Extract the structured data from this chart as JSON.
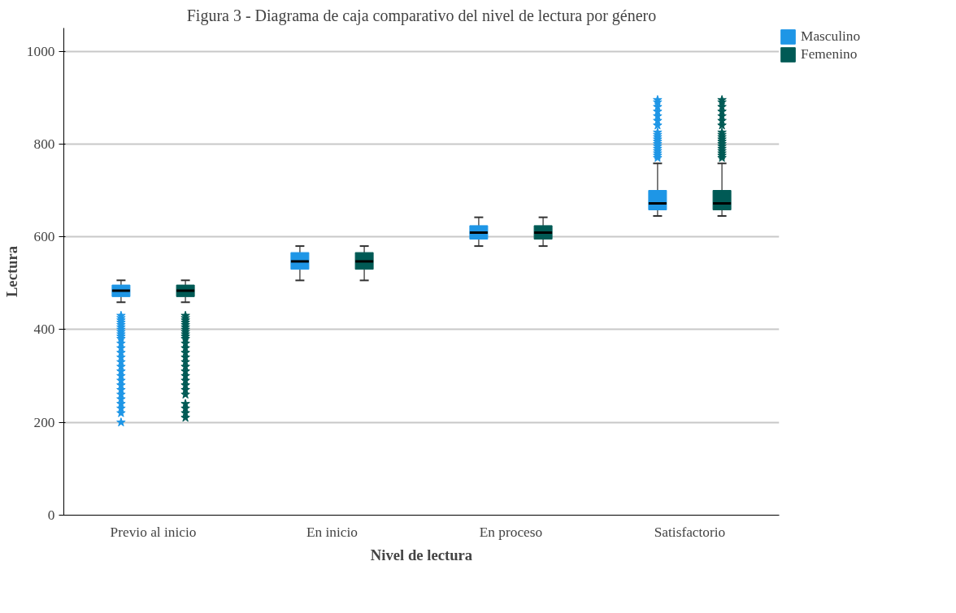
{
  "chart_data": {
    "type": "box",
    "title": "Figura 3 - Diagrama de caja comparativo del nivel de lectura por género",
    "xlabel": "Nivel de lectura",
    "ylabel": "Lectura",
    "categories": [
      "Previo al inicio",
      "En inicio",
      "En proceso",
      "Satisfactorio"
    ],
    "ylim": [
      0,
      1050
    ],
    "yticks": [
      0,
      200,
      400,
      600,
      800,
      1000
    ],
    "grid": "y",
    "legend": "top right",
    "marker": "star",
    "series": [
      {
        "name": "Masculino",
        "color": "#1e96e6",
        "boxes": [
          {
            "low": 459,
            "q1": 471,
            "median": 484,
            "q3": 496,
            "high": 506,
            "outliers": [
              430,
              425,
              420,
              415,
              410,
              405,
              400,
              395,
              390,
              385,
              380,
              370,
              360,
              350,
              340,
              330,
              320,
              310,
              300,
              290,
              280,
              270,
              260,
              250,
              240,
              230,
              220,
              200
            ]
          },
          {
            "low": 506,
            "q1": 530,
            "median": 547,
            "q3": 566,
            "high": 580
          },
          {
            "low": 580,
            "q1": 595,
            "median": 609,
            "q3": 624,
            "high": 642
          },
          {
            "low": 645,
            "q1": 658,
            "median": 672,
            "q3": 700,
            "high": 758,
            "outliers": [
              770,
              775,
              780,
              785,
              790,
              795,
              800,
              805,
              810,
              815,
              820,
              825,
              840,
              850,
              860,
              870,
              880,
              890,
              895
            ]
          }
        ]
      },
      {
        "name": "Femenino",
        "color": "#005a55",
        "boxes": [
          {
            "low": 459,
            "q1": 471,
            "median": 484,
            "q3": 496,
            "high": 506,
            "outliers": [
              430,
              425,
              420,
              415,
              410,
              405,
              400,
              395,
              390,
              385,
              380,
              370,
              360,
              350,
              340,
              330,
              320,
              310,
              300,
              290,
              280,
              270,
              260,
              240,
              230,
              220,
              210
            ]
          },
          {
            "low": 506,
            "q1": 530,
            "median": 547,
            "q3": 566,
            "high": 580
          },
          {
            "low": 580,
            "q1": 595,
            "median": 609,
            "q3": 624,
            "high": 642
          },
          {
            "low": 645,
            "q1": 658,
            "median": 672,
            "q3": 700,
            "high": 758,
            "outliers": [
              770,
              775,
              780,
              785,
              790,
              795,
              800,
              805,
              810,
              815,
              820,
              825,
              840,
              850,
              860,
              870,
              880,
              890,
              895
            ]
          }
        ]
      }
    ]
  }
}
